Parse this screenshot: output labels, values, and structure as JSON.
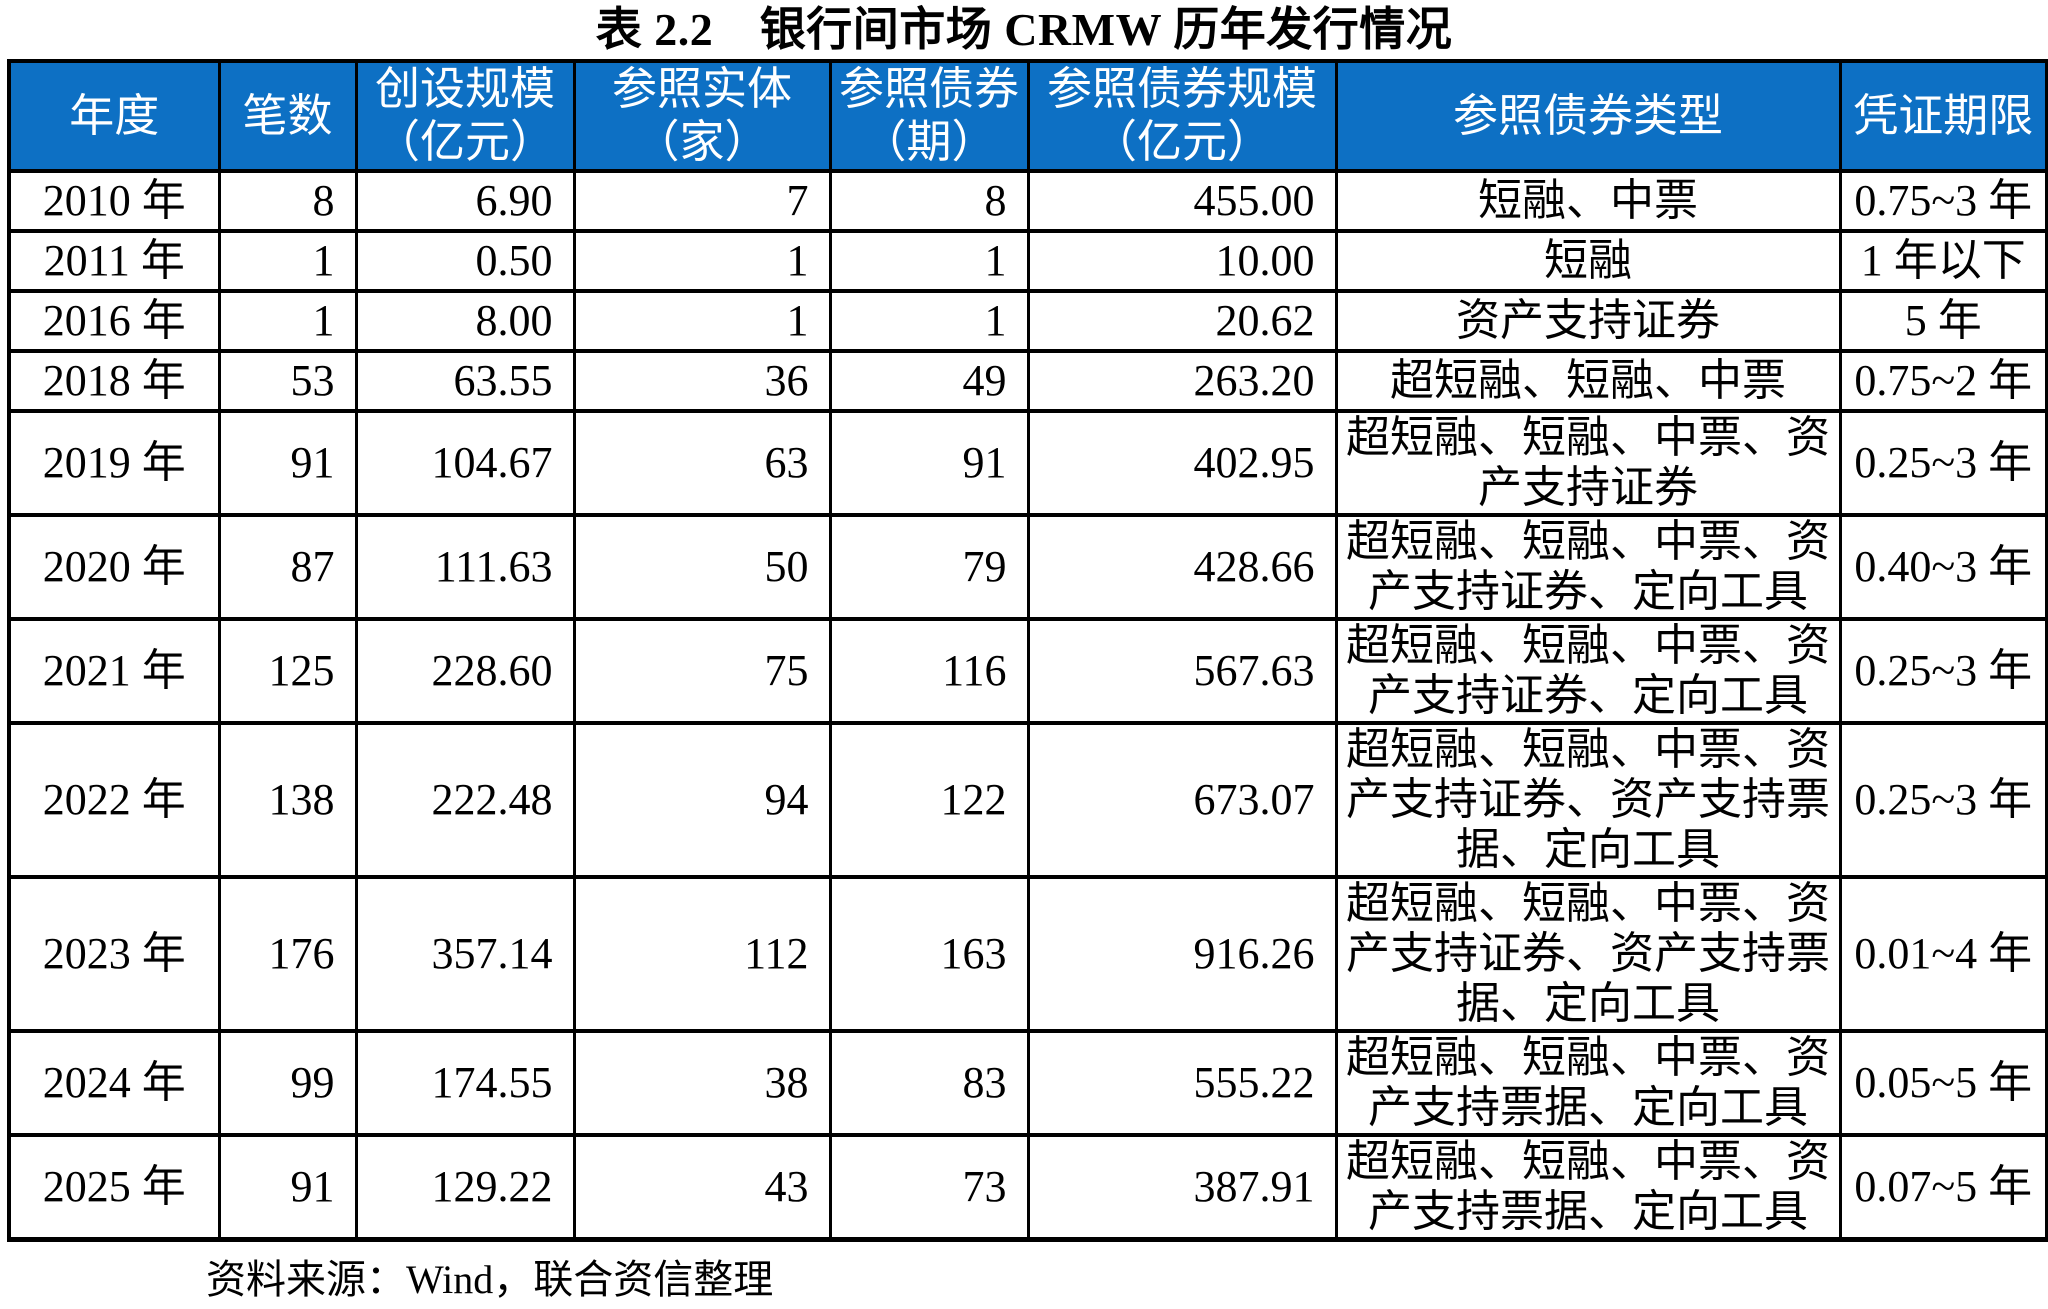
{
  "title": "表 2.2　银行间市场 CRMW 历年发行情况",
  "source_note": "资料来源：Wind，联合资信整理",
  "colors": {
    "header_bg": "#0D70C4",
    "header_text": "#FFFFFF",
    "border": "#000000",
    "body_text": "#000000"
  },
  "table": {
    "columns": [
      "年度",
      "笔数",
      "创设规模\n（亿元）",
      "参照实体\n（家）",
      "参照债券\n（期）",
      "参照债券规模\n（亿元）",
      "参照债券类型",
      "凭证期限"
    ],
    "rows": [
      {
        "year": "2010 年",
        "count": "8",
        "scale": "6.90",
        "entities": "7",
        "bonds": "8",
        "bond_scale": "455.00",
        "bond_types": "短融、中票",
        "term": "0.75~3 年"
      },
      {
        "year": "2011 年",
        "count": "1",
        "scale": "0.50",
        "entities": "1",
        "bonds": "1",
        "bond_scale": "10.00",
        "bond_types": "短融",
        "term": "1 年以下"
      },
      {
        "year": "2016 年",
        "count": "1",
        "scale": "8.00",
        "entities": "1",
        "bonds": "1",
        "bond_scale": "20.62",
        "bond_types": "资产支持证券",
        "term": "5 年"
      },
      {
        "year": "2018 年",
        "count": "53",
        "scale": "63.55",
        "entities": "36",
        "bonds": "49",
        "bond_scale": "263.20",
        "bond_types": "超短融、短融、中票",
        "term": "0.75~2 年"
      },
      {
        "year": "2019 年",
        "count": "91",
        "scale": "104.67",
        "entities": "63",
        "bonds": "91",
        "bond_scale": "402.95",
        "bond_types": "超短融、短融、中票、资\n产支持证券",
        "term": "0.25~3 年"
      },
      {
        "year": "2020 年",
        "count": "87",
        "scale": "111.63",
        "entities": "50",
        "bonds": "79",
        "bond_scale": "428.66",
        "bond_types": "超短融、短融、中票、资\n产支持证券、定向工具",
        "term": "0.40~3 年"
      },
      {
        "year": "2021 年",
        "count": "125",
        "scale": "228.60",
        "entities": "75",
        "bonds": "116",
        "bond_scale": "567.63",
        "bond_types": "超短融、短融、中票、资\n产支持证券、定向工具",
        "term": "0.25~3 年"
      },
      {
        "year": "2022 年",
        "count": "138",
        "scale": "222.48",
        "entities": "94",
        "bonds": "122",
        "bond_scale": "673.07",
        "bond_types": "超短融、短融、中票、资\n产支持证券、资产支持票\n据、定向工具",
        "term": "0.25~3 年"
      },
      {
        "year": "2023 年",
        "count": "176",
        "scale": "357.14",
        "entities": "112",
        "bonds": "163",
        "bond_scale": "916.26",
        "bond_types": "超短融、短融、中票、资\n产支持证券、资产支持票\n据、定向工具",
        "term": "0.01~4 年"
      },
      {
        "year": "2024 年",
        "count": "99",
        "scale": "174.55",
        "entities": "38",
        "bonds": "83",
        "bond_scale": "555.22",
        "bond_types": "超短融、短融、中票、资\n产支持票据、定向工具",
        "term": "0.05~5 年"
      },
      {
        "year": "2025 年",
        "count": "91",
        "scale": "129.22",
        "entities": "43",
        "bonds": "73",
        "bond_scale": "387.91",
        "bond_types": "超短融、短融、中票、资\n产支持票据、定向工具",
        "term": "0.07~5 年"
      }
    ]
  }
}
